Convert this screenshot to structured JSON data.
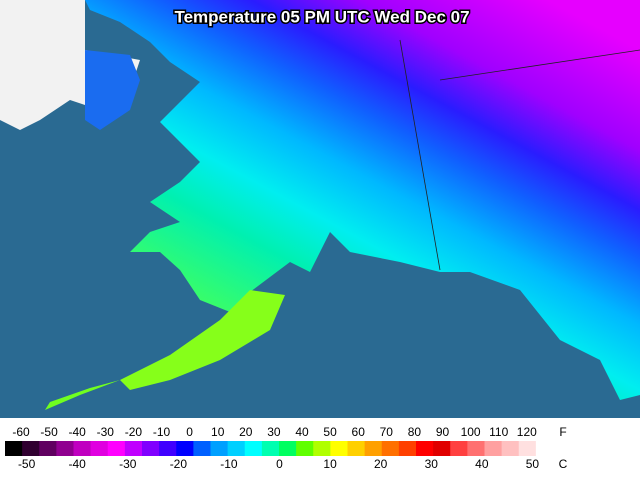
{
  "title": "Temperature 05 PM UTC Wed Dec 07",
  "legend": {
    "fahrenheit": {
      "unit": "F",
      "ticks": [
        -60,
        -50,
        -40,
        -30,
        -20,
        -10,
        0,
        10,
        20,
        30,
        40,
        50,
        60,
        70,
        80,
        90,
        100,
        110,
        120
      ]
    },
    "celsius": {
      "unit": "C",
      "ticks": [
        -50,
        -40,
        -30,
        -20,
        -10,
        0,
        10,
        20,
        30,
        40,
        50
      ]
    },
    "colors": [
      "#000000",
      "#300030",
      "#600060",
      "#900090",
      "#c000c0",
      "#e000e0",
      "#ff00ff",
      "#c000ff",
      "#8000ff",
      "#4000ff",
      "#0000ff",
      "#0060ff",
      "#00a0ff",
      "#00d0ff",
      "#00ffff",
      "#00ffb0",
      "#00ff60",
      "#60ff00",
      "#b0ff00",
      "#ffff00",
      "#ffd000",
      "#ffa000",
      "#ff7000",
      "#ff4000",
      "#ff0000",
      "#e00000",
      "#ff4040",
      "#ff7070",
      "#ffa0a0",
      "#ffc0c0",
      "#ffe0e0",
      "#ffffff"
    ]
  }
}
